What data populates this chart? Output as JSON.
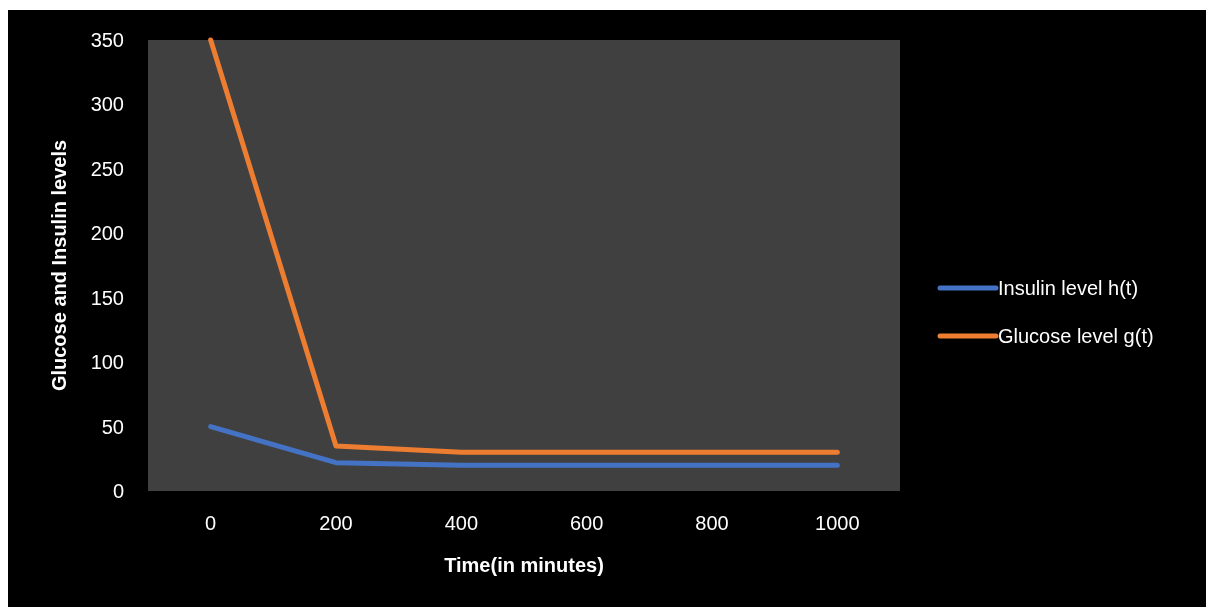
{
  "chart_data": {
    "type": "line",
    "xlabel": "Time(in minutes)",
    "ylabel": "Glucose and Insulin levels",
    "categories": [
      "0",
      "200",
      "400",
      "600",
      "800",
      "1000"
    ],
    "series": [
      {
        "name": "Insulin level h(t)",
        "color": "#4472c4",
        "values": [
          50,
          22,
          20,
          20,
          20,
          20
        ]
      },
      {
        "name": "Glucose level g(t)",
        "color": "#ed7d31",
        "values": [
          350,
          35,
          30,
          30,
          30,
          30
        ]
      }
    ],
    "ylim": [
      0,
      350
    ],
    "yticks": [
      0,
      50,
      100,
      150,
      200,
      250,
      300,
      350
    ],
    "grid": false,
    "legend": "right",
    "marker": "none",
    "line_style": "solid"
  }
}
